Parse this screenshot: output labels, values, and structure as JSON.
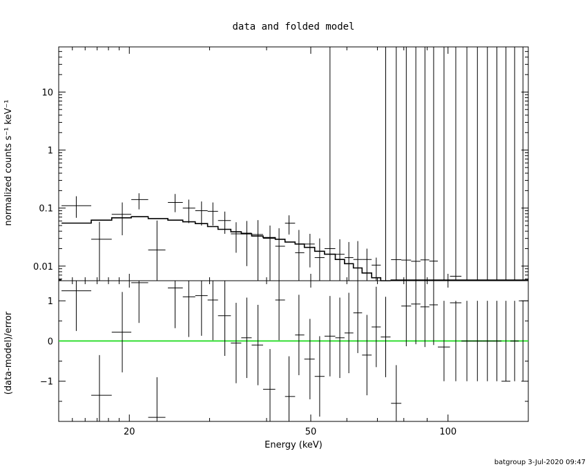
{
  "title": "data and folded model",
  "footer": "batgroup   3-Jul-2020 09:47",
  "colors": {
    "axes": "#000000",
    "data": "#000000",
    "model": "#000000",
    "zero_line": "#33dd33"
  },
  "chart_data": [
    {
      "type": "scatter",
      "panel": "top",
      "title": "data and folded model",
      "xlabel": "",
      "ylabel": "normalized counts s⁻¹ keV⁻¹",
      "xscale": "log",
      "yscale": "log",
      "xlim": [
        14,
        150
      ],
      "ylim": [
        0.0056,
        60
      ],
      "yticks": [
        0.01,
        0.1,
        1,
        10
      ],
      "ytick_labels": [
        "0.01",
        "0.1",
        "1",
        "10"
      ],
      "series": [
        {
          "kind": "data_with_errors",
          "points": [
            {
              "x": 15.3,
              "xerr": [
                14.2,
                16.5
              ],
              "y": 0.11,
              "ylo": 0.068,
              "yhi": 0.16
            },
            {
              "x": 17.2,
              "xerr": [
                16.5,
                18.3
              ],
              "y": 0.029,
              "ylo": 0.0056,
              "yhi": 0.058
            },
            {
              "x": 19.3,
              "xerr": [
                18.3,
                20.2
              ],
              "y": 0.078,
              "ylo": 0.034,
              "yhi": 0.125
            },
            {
              "x": 21.0,
              "xerr": [
                20.2,
                22.0
              ],
              "y": 0.14,
              "ylo": 0.095,
              "yhi": 0.18
            },
            {
              "x": 23.0,
              "xerr": [
                22.0,
                24.0
              ],
              "y": 0.019,
              "ylo": 0.0056,
              "yhi": 0.061
            },
            {
              "x": 25.2,
              "xerr": [
                24.3,
                26.2
              ],
              "y": 0.125,
              "ylo": 0.085,
              "yhi": 0.175
            },
            {
              "x": 27.0,
              "xerr": [
                26.2,
                27.9
              ],
              "y": 0.1,
              "ylo": 0.055,
              "yhi": 0.14
            },
            {
              "x": 28.8,
              "xerr": [
                27.9,
                29.7
              ],
              "y": 0.09,
              "ylo": 0.05,
              "yhi": 0.13
            },
            {
              "x": 30.5,
              "xerr": [
                29.7,
                31.3
              ],
              "y": 0.088,
              "ylo": 0.05,
              "yhi": 0.125
            },
            {
              "x": 32.4,
              "xerr": [
                31.3,
                33.4
              ],
              "y": 0.061,
              "ylo": 0.036,
              "yhi": 0.087
            },
            {
              "x": 34.3,
              "xerr": [
                33.4,
                35.2
              ],
              "y": 0.036,
              "ylo": 0.017,
              "yhi": 0.057
            },
            {
              "x": 36.2,
              "xerr": [
                35.2,
                37.1
              ],
              "y": 0.037,
              "ylo": 0.01,
              "yhi": 0.06
            },
            {
              "x": 38.3,
              "xerr": [
                37.1,
                39.3
              ],
              "y": 0.035,
              "ylo": 0.0056,
              "yhi": 0.062
            },
            {
              "x": 40.7,
              "xerr": [
                39.3,
                41.8
              ],
              "y": 0.03,
              "ylo": 0.0056,
              "yhi": 0.05
            },
            {
              "x": 42.6,
              "xerr": [
                41.8,
                43.9
              ],
              "y": 0.022,
              "ylo": 0.0056,
              "yhi": 0.045
            },
            {
              "x": 44.8,
              "xerr": [
                43.9,
                46.2
              ],
              "y": 0.055,
              "ylo": 0.035,
              "yhi": 0.075
            },
            {
              "x": 47.1,
              "xerr": [
                46.2,
                48.4
              ],
              "y": 0.017,
              "ylo": 0.0056,
              "yhi": 0.042
            },
            {
              "x": 49.8,
              "xerr": [
                48.4,
                51.0
              ],
              "y": 0.024,
              "ylo": 0.0095,
              "yhi": 0.036
            },
            {
              "x": 52.3,
              "xerr": [
                51.0,
                53.6
              ],
              "y": 0.014,
              "ylo": 0.0056,
              "yhi": 0.03
            },
            {
              "x": 55.1,
              "xerr": [
                53.6,
                56.6
              ],
              "y": 0.02,
              "ylo": 0.0056,
              "yhi": 60
            },
            {
              "x": 57.9,
              "xerr": [
                56.6,
                59.3
              ],
              "y": 0.016,
              "ylo": 0.0056,
              "yhi": 0.029
            },
            {
              "x": 60.6,
              "xerr": [
                59.3,
                62.0
              ],
              "y": 0.014,
              "ylo": 0.0056,
              "yhi": 0.026
            },
            {
              "x": 63.4,
              "xerr": [
                62.0,
                64.8
              ],
              "y": 0.013,
              "ylo": 0.0056,
              "yhi": 0.027
            },
            {
              "x": 66.4,
              "xerr": [
                64.8,
                68.0
              ],
              "y": 0.013,
              "ylo": 0.0056,
              "yhi": 0.02
            },
            {
              "x": 69.6,
              "xerr": [
                68.0,
                71.2
              ],
              "y": 0.0104,
              "ylo": 0.0056,
              "yhi": 0.014
            },
            {
              "x": 73.0,
              "xerr": [
                71.2,
                74.8
              ],
              "y": 0.0056,
              "ylo": 0.0056,
              "yhi": 60
            },
            {
              "x": 77.0,
              "xerr": [
                75.0,
                79.0
              ],
              "y": 0.0129,
              "ylo": 0.0056,
              "yhi": 60
            },
            {
              "x": 81.0,
              "xerr": [
                79.0,
                83.0
              ],
              "y": 0.0127,
              "ylo": 0.0056,
              "yhi": 60
            },
            {
              "x": 85.0,
              "xerr": [
                83.0,
                87.0
              ],
              "y": 0.0121,
              "ylo": 0.0056,
              "yhi": 60
            },
            {
              "x": 89.0,
              "xerr": [
                87.0,
                91.0
              ],
              "y": 0.0128,
              "ylo": 0.0056,
              "yhi": 60
            },
            {
              "x": 93.0,
              "xerr": [
                91.0,
                95.0
              ],
              "y": 0.0122,
              "ylo": 0.0056,
              "yhi": 60
            },
            {
              "x": 98.0,
              "xerr": [
                95.0,
                101.0
              ],
              "y": 0.0056,
              "ylo": 0.0056,
              "yhi": 60
            },
            {
              "x": 104.0,
              "xerr": [
                101.0,
                107.0
              ],
              "y": 0.0067,
              "ylo": 0.0056,
              "yhi": 60
            },
            {
              "x": 110.0,
              "xerr": [
                107.0,
                113.0
              ],
              "y": 0.0056,
              "ylo": 0.0056,
              "yhi": 60
            },
            {
              "x": 116.0,
              "xerr": [
                113.0,
                119.0
              ],
              "y": 0.0056,
              "ylo": 0.0056,
              "yhi": 60
            },
            {
              "x": 122.0,
              "xerr": [
                119.0,
                125.0
              ],
              "y": 0.0056,
              "ylo": 0.0056,
              "yhi": 60
            },
            {
              "x": 128.0,
              "xerr": [
                125.0,
                131.0
              ],
              "y": 0.0056,
              "ylo": 0.0056,
              "yhi": 60
            },
            {
              "x": 134.0,
              "xerr": [
                131.0,
                137.0
              ],
              "y": 0.0056,
              "ylo": 0.0056,
              "yhi": 60
            },
            {
              "x": 140.0,
              "xerr": [
                137.0,
                143.0
              ],
              "y": 0.0056,
              "ylo": 0.0056,
              "yhi": 60
            },
            {
              "x": 146.0,
              "xerr": [
                143.0,
                150.0
              ],
              "y": 0.0056,
              "ylo": 0.0056,
              "yhi": 60
            }
          ]
        },
        {
          "kind": "model_step",
          "edges": [
            14.2,
            16.5,
            18.3,
            20.2,
            22.0,
            24.3,
            26.2,
            27.9,
            29.7,
            31.3,
            33.4,
            35.2,
            37.1,
            39.3,
            41.8,
            43.9,
            46.2,
            48.4,
            51.0,
            53.6,
            56.6,
            59.3,
            62.0,
            64.8,
            68.0,
            71.2,
            74.8
          ],
          "values": [
            0.055,
            0.062,
            0.068,
            0.071,
            0.066,
            0.062,
            0.058,
            0.054,
            0.048,
            0.043,
            0.039,
            0.036,
            0.033,
            0.031,
            0.029,
            0.026,
            0.024,
            0.021,
            0.018,
            0.016,
            0.013,
            0.011,
            0.0093,
            0.0076,
            0.0063,
            0.0056
          ]
        }
      ]
    },
    {
      "type": "scatter",
      "panel": "bottom",
      "xlabel": "Energy (keV)",
      "ylabel": "(data-model)/error",
      "xscale": "log",
      "xlim": [
        14,
        150
      ],
      "ylim": [
        -2,
        1.5
      ],
      "xticks": [
        20,
        50,
        100
      ],
      "xtick_labels": [
        "20",
        "50",
        "100"
      ],
      "yticks": [
        -1,
        0,
        1
      ],
      "ytick_labels": [
        "−1",
        "0",
        "1"
      ],
      "zero_line": 0,
      "series": [
        {
          "kind": "residuals",
          "points": [
            {
              "x": 15.3,
              "xerr": [
                14.2,
                16.5
              ],
              "y": 1.25,
              "ylo": 0.25,
              "yhi": 1.5
            },
            {
              "x": 17.2,
              "xerr": [
                16.5,
                18.3
              ],
              "y": -1.35,
              "ylo": -2,
              "yhi": -0.35
            },
            {
              "x": 19.3,
              "xerr": [
                18.3,
                20.2
              ],
              "y": 0.22,
              "ylo": -0.78,
              "yhi": 1.22
            },
            {
              "x": 21.0,
              "xerr": [
                20.2,
                22.0
              ],
              "y": 1.45,
              "ylo": 0.45,
              "yhi": 1.5
            },
            {
              "x": 23.0,
              "xerr": [
                22.0,
                24.0
              ],
              "y": -1.9,
              "ylo": -2,
              "yhi": -0.9
            },
            {
              "x": 25.2,
              "xerr": [
                24.3,
                26.2
              ],
              "y": 1.32,
              "ylo": 0.32,
              "yhi": 1.5
            },
            {
              "x": 27.0,
              "xerr": [
                26.2,
                27.9
              ],
              "y": 1.1,
              "ylo": 0.1,
              "yhi": 1.5
            },
            {
              "x": 28.8,
              "xerr": [
                27.9,
                29.7
              ],
              "y": 1.13,
              "ylo": 0.13,
              "yhi": 1.5
            },
            {
              "x": 30.5,
              "xerr": [
                29.7,
                31.3
              ],
              "y": 1.02,
              "ylo": 0.02,
              "yhi": 1.5
            },
            {
              "x": 32.4,
              "xerr": [
                31.3,
                33.4
              ],
              "y": 0.63,
              "ylo": -0.37,
              "yhi": 1.5
            },
            {
              "x": 34.3,
              "xerr": [
                33.4,
                35.2
              ],
              "y": -0.05,
              "ylo": -1.05,
              "yhi": 0.95
            },
            {
              "x": 36.2,
              "xerr": [
                35.2,
                37.1
              ],
              "y": 0.08,
              "ylo": -0.92,
              "yhi": 1.08
            },
            {
              "x": 38.3,
              "xerr": [
                37.1,
                39.3
              ],
              "y": -0.1,
              "ylo": -1.1,
              "yhi": 0.9
            },
            {
              "x": 40.7,
              "xerr": [
                39.3,
                41.8
              ],
              "y": -1.2,
              "ylo": -2,
              "yhi": -0.2
            },
            {
              "x": 42.6,
              "xerr": [
                41.8,
                43.9
              ],
              "y": 1.02,
              "ylo": 0.02,
              "yhi": 1.5
            },
            {
              "x": 44.8,
              "xerr": [
                43.9,
                46.2
              ],
              "y": -1.38,
              "ylo": -2,
              "yhi": -0.38
            },
            {
              "x": 47.1,
              "xerr": [
                46.2,
                48.4
              ],
              "y": 0.15,
              "ylo": -0.85,
              "yhi": 1.15
            },
            {
              "x": 49.8,
              "xerr": [
                48.4,
                51.0
              ],
              "y": -0.45,
              "ylo": -1.45,
              "yhi": 0.55
            },
            {
              "x": 52.3,
              "xerr": [
                51.0,
                53.6
              ],
              "y": -0.88,
              "ylo": -1.88,
              "yhi": 0.12
            },
            {
              "x": 55.1,
              "xerr": [
                53.6,
                56.6
              ],
              "y": 0.12,
              "ylo": -0.88,
              "yhi": 1.12
            },
            {
              "x": 57.9,
              "xerr": [
                56.6,
                59.3
              ],
              "y": 0.08,
              "ylo": -0.92,
              "yhi": 1.08
            },
            {
              "x": 60.6,
              "xerr": [
                59.3,
                62.0
              ],
              "y": 0.2,
              "ylo": -0.8,
              "yhi": 1.2
            },
            {
              "x": 63.4,
              "xerr": [
                62.0,
                64.8
              ],
              "y": 0.7,
              "ylo": -0.3,
              "yhi": 1.5
            },
            {
              "x": 66.4,
              "xerr": [
                64.8,
                68.0
              ],
              "y": -0.35,
              "ylo": -1.35,
              "yhi": 0.65
            },
            {
              "x": 69.6,
              "xerr": [
                68.0,
                71.2
              ],
              "y": 0.35,
              "ylo": -0.65,
              "yhi": 1.35
            },
            {
              "x": 73.0,
              "xerr": [
                71.2,
                74.8
              ],
              "y": 0.1,
              "ylo": -0.9,
              "yhi": 1.1
            },
            {
              "x": 77.0,
              "xerr": [
                75.0,
                79.0
              ],
              "y": -1.55,
              "ylo": -2,
              "yhi": -0.6
            },
            {
              "x": 81.0,
              "xerr": [
                79.0,
                83.0
              ],
              "y": 0.87,
              "ylo": -0.13,
              "yhi": 1.5
            },
            {
              "x": 85.0,
              "xerr": [
                83.0,
                87.0
              ],
              "y": 0.92,
              "ylo": -0.08,
              "yhi": 1.5
            },
            {
              "x": 89.0,
              "xerr": [
                87.0,
                91.0
              ],
              "y": 0.85,
              "ylo": -0.15,
              "yhi": 1.5
            },
            {
              "x": 93.0,
              "xerr": [
                91.0,
                95.0
              ],
              "y": 0.9,
              "ylo": -0.1,
              "yhi": 1.5
            },
            {
              "x": 98.0,
              "xerr": [
                95.0,
                101.0
              ],
              "y": -0.15,
              "ylo": -1.0,
              "yhi": 1.0
            },
            {
              "x": 104.0,
              "xerr": [
                101.0,
                107.0
              ],
              "y": 0.95,
              "ylo": -1.0,
              "yhi": 1.0
            },
            {
              "x": 110.0,
              "xerr": [
                107.0,
                113.0
              ],
              "y": 0.0,
              "ylo": -1.0,
              "yhi": 1.0
            },
            {
              "x": 116.0,
              "xerr": [
                113.0,
                119.0
              ],
              "y": 0.0,
              "ylo": -1.0,
              "yhi": 1.0
            },
            {
              "x": 122.0,
              "xerr": [
                119.0,
                125.0
              ],
              "y": 0.0,
              "ylo": -1.0,
              "yhi": 1.0
            },
            {
              "x": 128.0,
              "xerr": [
                125.0,
                131.0
              ],
              "y": 0.0,
              "ylo": -1.0,
              "yhi": 1.0
            },
            {
              "x": 134.0,
              "xerr": [
                131.0,
                137.0
              ],
              "y": -1.0,
              "ylo": -1.0,
              "yhi": 1.0
            },
            {
              "x": 140.0,
              "xerr": [
                137.0,
                143.0
              ],
              "y": 0.0,
              "ylo": -1.0,
              "yhi": 1.0
            },
            {
              "x": 146.0,
              "xerr": [
                143.0,
                150.0
              ],
              "y": 1.0,
              "ylo": -1.0,
              "yhi": 1.0
            }
          ]
        }
      ]
    }
  ]
}
